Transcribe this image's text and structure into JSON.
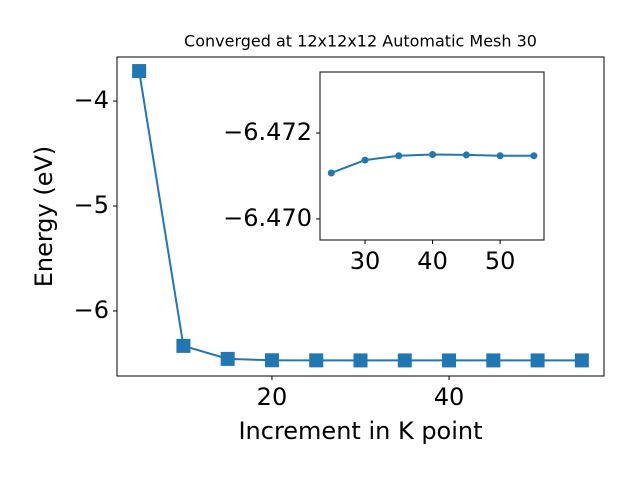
{
  "chart_data": [
    {
      "type": "line",
      "title": "Converged at 12x12x12 Automatic Mesh 30",
      "xlabel": "Increment in K point",
      "ylabel": "Energy (eV)",
      "marker": "square",
      "color": "#1f77b4",
      "x": [
        5,
        10,
        15,
        20,
        25,
        30,
        35,
        40,
        45,
        50,
        55
      ],
      "values": [
        -3.714,
        -6.333,
        -6.457,
        -6.47,
        -6.47107,
        -6.47137,
        -6.47147,
        -6.4715,
        -6.47149,
        -6.47147,
        -6.47147
      ],
      "xlim": [
        2.5,
        57.5
      ],
      "ylim": [
        -6.62,
        -3.58
      ],
      "xticks": [
        20,
        40
      ],
      "yticks": [
        {
          "value": -6,
          "label": "−6"
        },
        {
          "value": -5,
          "label": "−5"
        },
        {
          "value": -4,
          "label": "−4"
        }
      ]
    },
    {
      "type": "line",
      "marker": "circle",
      "color": "#1f77b4",
      "x": [
        25,
        30,
        35,
        40,
        45,
        50,
        55
      ],
      "values": [
        -6.47107,
        -6.47137,
        -6.47147,
        -6.4715,
        -6.47149,
        -6.47147,
        -6.47147
      ],
      "xlim": [
        23.33,
        56.5
      ],
      "ylim": [
        -6.46951,
        -6.47342
      ],
      "xticks": [
        30,
        40,
        50
      ],
      "yticks": [
        {
          "value": -6.472,
          "label": "−6.472"
        },
        {
          "value": -6.47,
          "label": "−6.470"
        }
      ]
    }
  ]
}
